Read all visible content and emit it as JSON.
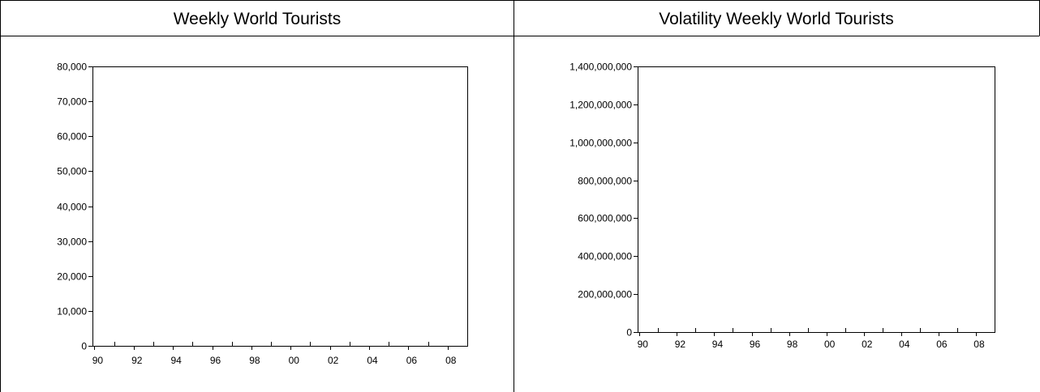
{
  "panels": [
    {
      "header": "Weekly World Tourists"
    },
    {
      "header": "Volatility Weekly World Tourists"
    }
  ],
  "chart_data": [
    {
      "type": "line",
      "title": "",
      "xlabel": "",
      "ylabel": "",
      "x_tick_labels": [
        "90",
        "92",
        "94",
        "96",
        "98",
        "00",
        "02",
        "04",
        "06",
        "08"
      ],
      "y_tick_labels": [
        "0",
        "10,000",
        "20,000",
        "30,000",
        "40,000",
        "50,000",
        "60,000",
        "70,000",
        "80,000"
      ],
      "y_ticks": [
        0,
        10000,
        20000,
        30000,
        40000,
        50000,
        60000,
        70000,
        80000
      ],
      "ylim": [
        0,
        80000
      ],
      "xlim_years": [
        1989.9,
        2009.0
      ],
      "series": [],
      "grid": false,
      "legend": "none"
    },
    {
      "type": "line",
      "title": "",
      "xlabel": "",
      "ylabel": "",
      "x_tick_labels": [
        "90",
        "92",
        "94",
        "96",
        "98",
        "00",
        "02",
        "04",
        "06",
        "08"
      ],
      "y_tick_labels": [
        "0",
        "200,000,000",
        "400,000,000",
        "600,000,000",
        "800,000,000",
        "1,000,000,000",
        "1,200,000,000",
        "1,400,000,000"
      ],
      "y_ticks": [
        0,
        200000000,
        400000000,
        600000000,
        800000000,
        1000000000,
        1200000000,
        1400000000
      ],
      "ylim": [
        0,
        1400000000
      ],
      "xlim_years": [
        1989.9,
        2009.0
      ],
      "series": [],
      "grid": false,
      "legend": "none"
    }
  ]
}
